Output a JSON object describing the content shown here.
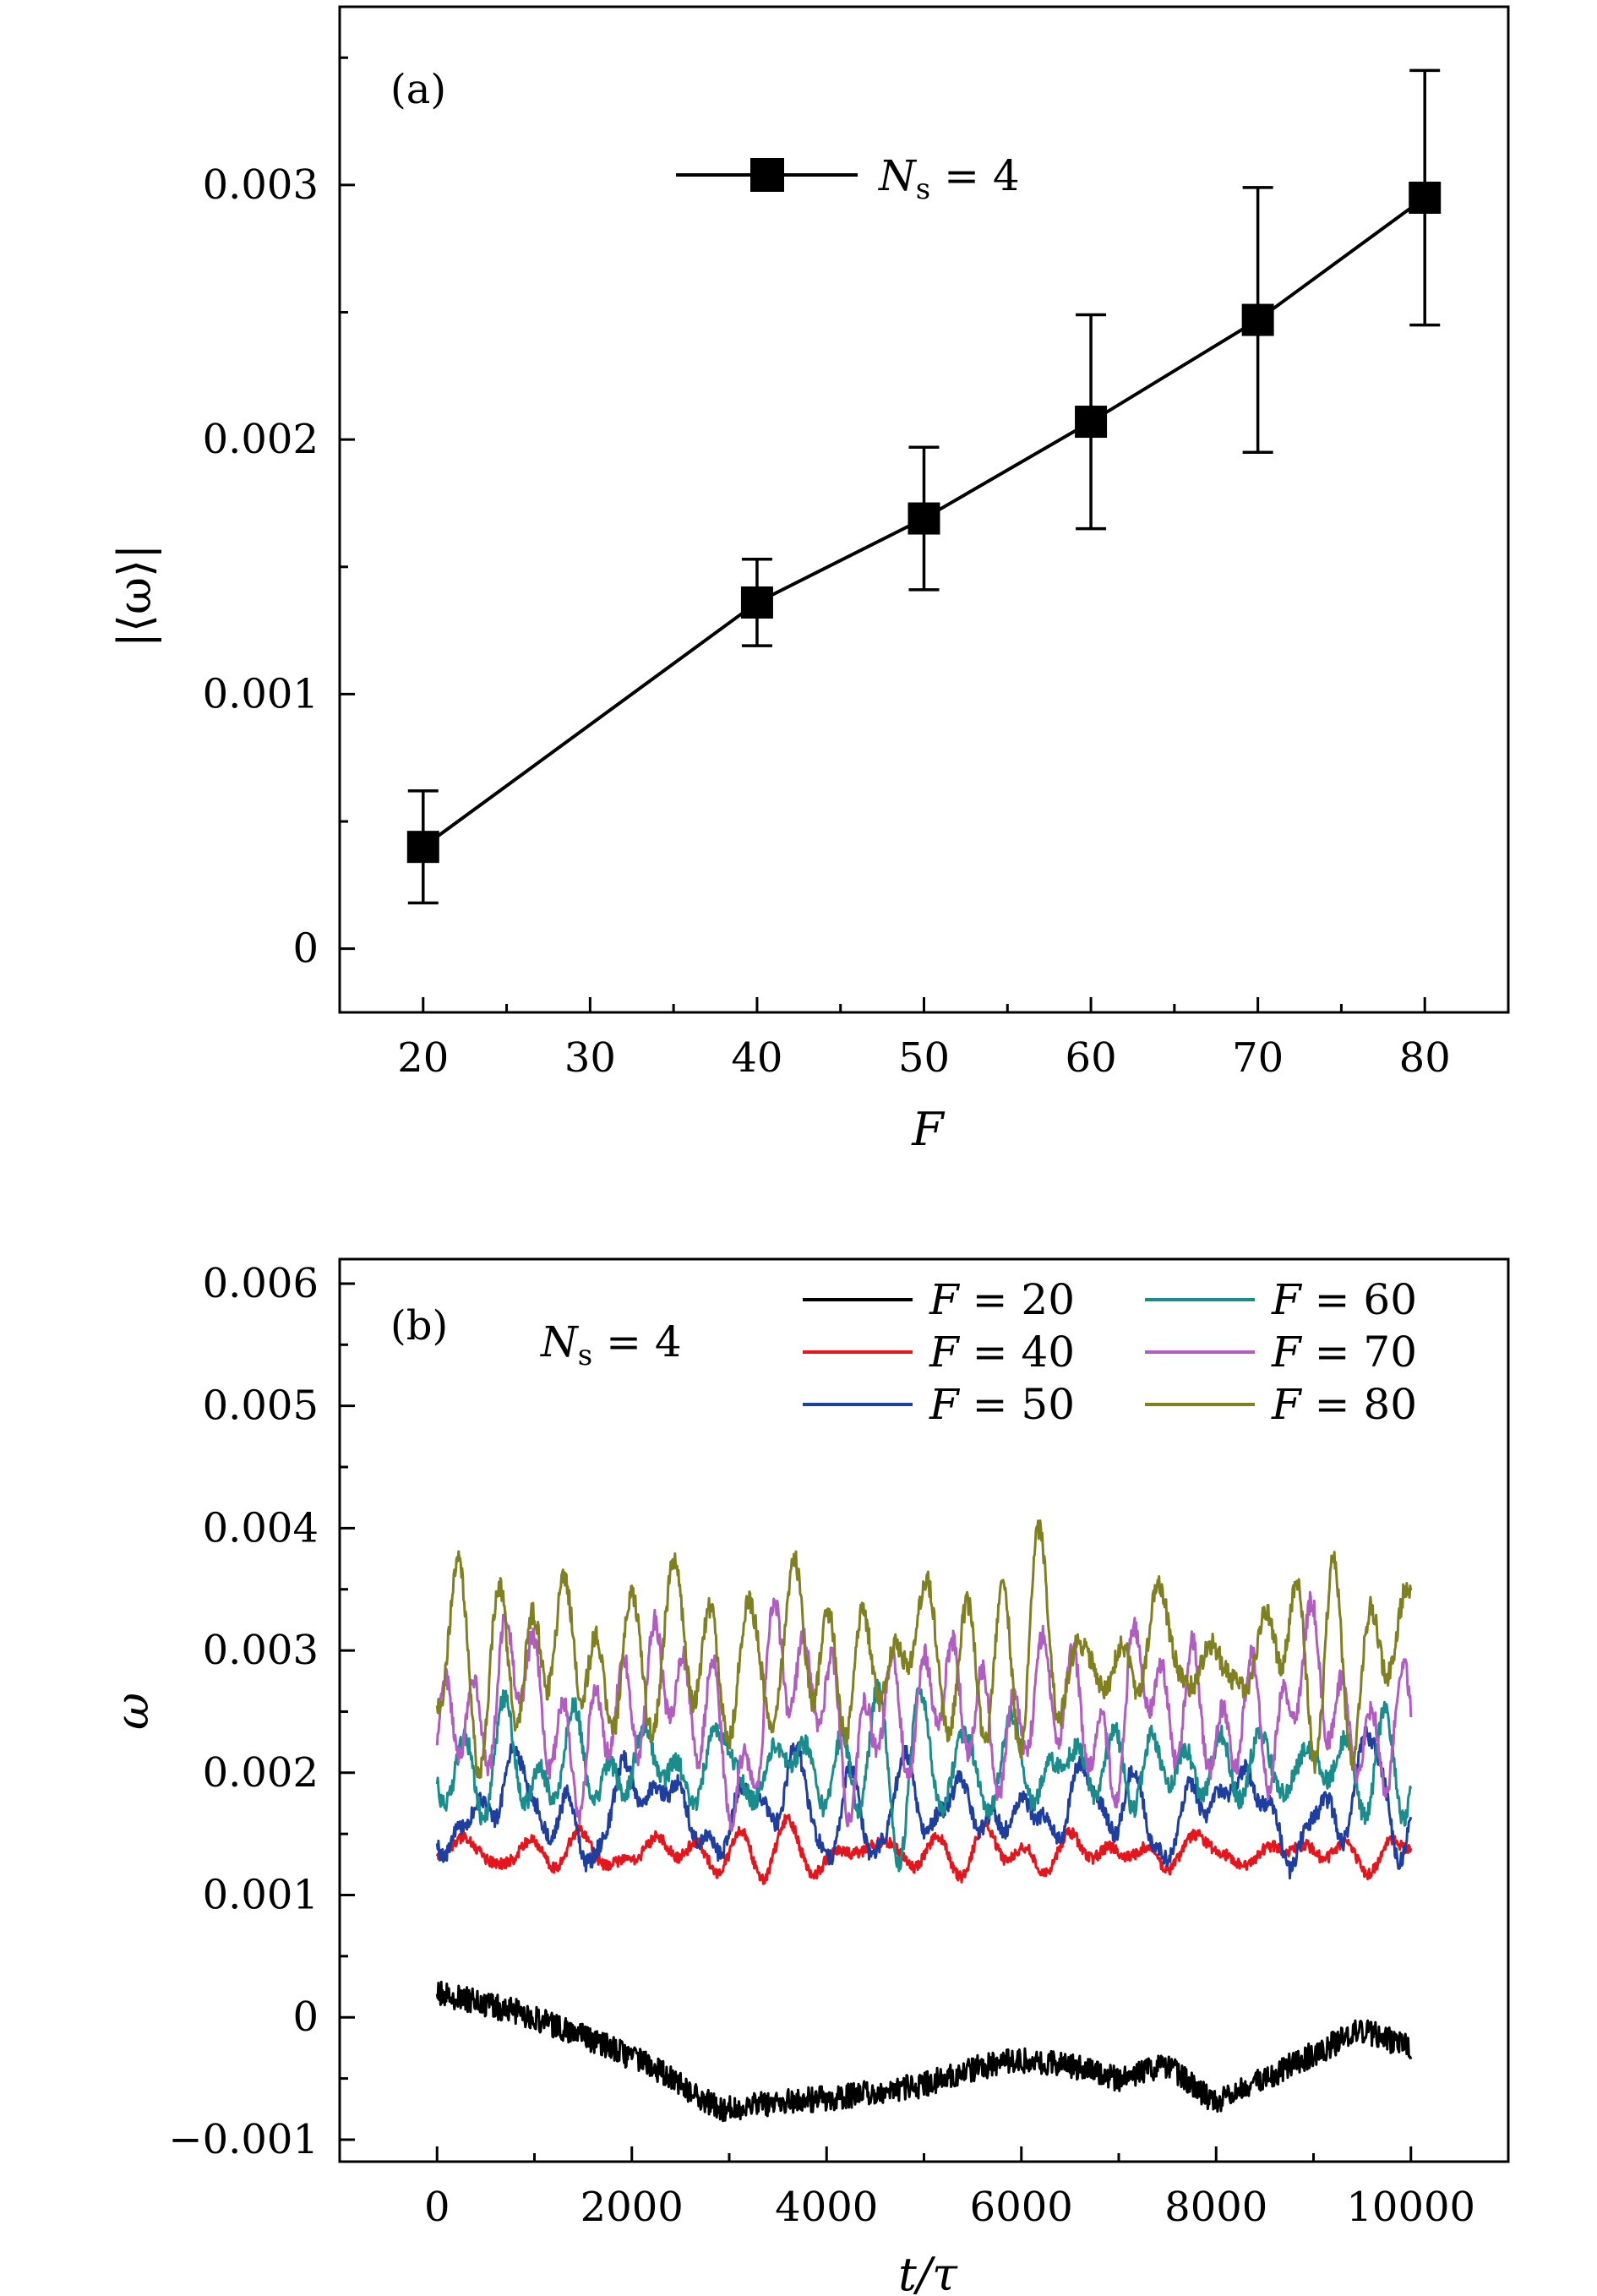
{
  "chart_data": [
    {
      "type": "line",
      "panel_label": "(a)",
      "xlabel": "F",
      "ylabel": "|⟨ω⟩|",
      "xlim": [
        15,
        85
      ],
      "ylim": [
        -0.00025,
        0.0037
      ],
      "x_ticks": [
        20,
        30,
        40,
        50,
        60,
        70,
        80
      ],
      "x_tick_labels": [
        "20",
        "30",
        "40",
        "50",
        "60",
        "70",
        "80"
      ],
      "y_ticks": [
        0,
        0.001,
        0.002,
        0.003
      ],
      "y_tick_labels": [
        "0",
        "0.001",
        "0.002",
        "0.003"
      ],
      "grid": false,
      "legend_position": "top-center",
      "series": [
        {
          "name_main": "N",
          "name_sub": "s",
          "name_rest": " = 4",
          "color": "#000000",
          "marker": "square",
          "x": [
            20,
            40,
            50,
            60,
            70,
            80
          ],
          "y": [
            0.0004,
            0.00136,
            0.00169,
            0.00207,
            0.00247,
            0.00295
          ],
          "yerr": [
            0.00022,
            0.00017,
            0.00028,
            0.00042,
            0.00052,
            0.0005
          ]
        }
      ]
    },
    {
      "type": "line",
      "panel_label": "(b)",
      "annotation_main": "N",
      "annotation_sub": "s",
      "annotation_rest": " = 4",
      "xlabel": "t/τ",
      "ylabel": "ω",
      "xlim": [
        -1000,
        11000
      ],
      "ylim": [
        -0.00118,
        0.0062
      ],
      "x_ticks": [
        0,
        2000,
        4000,
        6000,
        8000,
        10000
      ],
      "x_tick_labels": [
        "0",
        "2000",
        "4000",
        "6000",
        "8000",
        "10000"
      ],
      "y_ticks": [
        -0.001,
        0,
        0.001,
        0.002,
        0.003,
        0.004,
        0.005,
        0.006
      ],
      "y_tick_labels": [
        "−0.001",
        "0",
        "0.001",
        "0.002",
        "0.003",
        "0.004",
        "0.005",
        "0.006"
      ],
      "grid": false,
      "legend_position": "top-right",
      "t_range": [
        0,
        10000
      ],
      "series": [
        {
          "name": "F = 20",
          "label_var": "F",
          "label_rest": " = 20",
          "color": "#000000",
          "mean": -0.0004,
          "amplitude": 0.00012,
          "noise": 0.00013,
          "seed": 20,
          "trend_t": [
            0,
            800,
            1500,
            2200,
            2900,
            3500,
            4200,
            5000,
            5600,
            6000,
            6500,
            7000,
            7500,
            8000,
            8500,
            9000,
            9500,
            10000
          ],
          "trend_y": [
            0.0002,
            5e-05,
            -0.00015,
            -0.0004,
            -0.00075,
            -0.0007,
            -0.00065,
            -0.00055,
            -0.0004,
            -0.00035,
            -0.0004,
            -0.0005,
            -0.0004,
            -0.0007,
            -0.0005,
            -0.0003,
            -0.0001,
            -0.00025
          ]
        },
        {
          "name": "F = 40",
          "label_var": "F",
          "label_rest": " = 40",
          "color": "#e8141c",
          "mean": 0.00135,
          "amplitude": 0.0002,
          "noise": 6e-05,
          "seed": 40
        },
        {
          "name": "F = 50",
          "label_var": "F",
          "label_rest": " = 50",
          "color": "#1f3fa0",
          "mean": 0.0017,
          "amplitude": 0.00038,
          "noise": 9e-05,
          "seed": 50
        },
        {
          "name": "F = 60",
          "label_var": "F",
          "label_rest": " = 60",
          "color": "#1a8c8c",
          "mean": 0.00205,
          "amplitude": 0.00045,
          "noise": 0.0001,
          "seed": 60
        },
        {
          "name": "F = 70",
          "label_var": "F",
          "label_rest": " = 70",
          "color": "#b05cc0",
          "mean": 0.0025,
          "amplitude": 0.0006,
          "noise": 0.00011,
          "seed": 70
        },
        {
          "name": "F = 80",
          "label_var": "F",
          "label_rest": " = 80",
          "color": "#808020",
          "mean": 0.00295,
          "amplitude": 0.00062,
          "noise": 0.00012,
          "seed": 80
        }
      ]
    }
  ]
}
